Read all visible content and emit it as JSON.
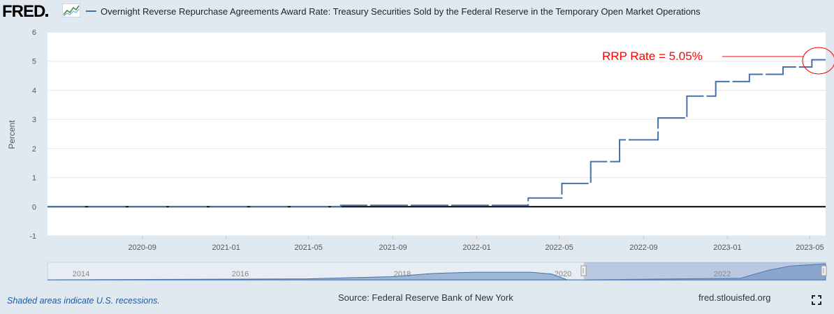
{
  "header": {
    "logo_text": "FRED",
    "series_title": "Overnight Reverse Repurchase Agreements Award Rate: Treasury Securities Sold by the Federal Reserve in the Temporary Open Market Operations"
  },
  "annotation": {
    "text": "RRP Rate = 5.05%"
  },
  "footer": {
    "recession_note": "Shaded areas indicate U.S. recessions.",
    "source": "Source: Federal Reserve Bank of New York",
    "url": "fred.stlouisfed.org"
  },
  "colors": {
    "series": "#4572a7",
    "annotation": "#ff0000",
    "background": "#e1e9f0",
    "plot": "#ffffff"
  },
  "icons": {
    "fullscreen": "fullscreen-icon",
    "logo_graph": "line-graph-icon"
  },
  "chart_data": {
    "type": "line",
    "title": "",
    "xlabel": "",
    "ylabel": "Percent",
    "ylim": [
      -1,
      6
    ],
    "yticks": [
      -1,
      0,
      1,
      2,
      3,
      4,
      5,
      6
    ],
    "xlim": [
      "2020-04-16",
      "2023-05-24"
    ],
    "xticks": [
      "2020-09",
      "2021-01",
      "2021-05",
      "2021-09",
      "2022-01",
      "2022-05",
      "2022-09",
      "2023-01",
      "2023-05"
    ],
    "grid": true,
    "legend": "top-left",
    "series": [
      {
        "name": "Overnight Reverse Repurchase Agreements Award Rate: Treasury Securities Sold by the Federal Reserve in the Temporary Open Market Operations",
        "style": "step",
        "points": [
          {
            "x": "2020-04-16",
            "y": 0.0
          },
          {
            "x": "2021-06-17",
            "y": 0.05
          },
          {
            "x": "2022-03-17",
            "y": 0.3
          },
          {
            "x": "2022-05-05",
            "y": 0.8
          },
          {
            "x": "2022-06-16",
            "y": 1.55
          },
          {
            "x": "2022-07-28",
            "y": 2.3
          },
          {
            "x": "2022-09-22",
            "y": 3.05
          },
          {
            "x": "2022-11-03",
            "y": 3.8
          },
          {
            "x": "2022-12-15",
            "y": 4.3
          },
          {
            "x": "2023-02-02",
            "y": 4.55
          },
          {
            "x": "2023-03-23",
            "y": 4.8
          },
          {
            "x": "2023-05-04",
            "y": 5.05
          },
          {
            "x": "2023-05-24",
            "y": 5.05
          }
        ]
      }
    ],
    "navigator": {
      "labels": [
        "2014",
        "2016",
        "2018",
        "2020",
        "2022"
      ]
    }
  }
}
